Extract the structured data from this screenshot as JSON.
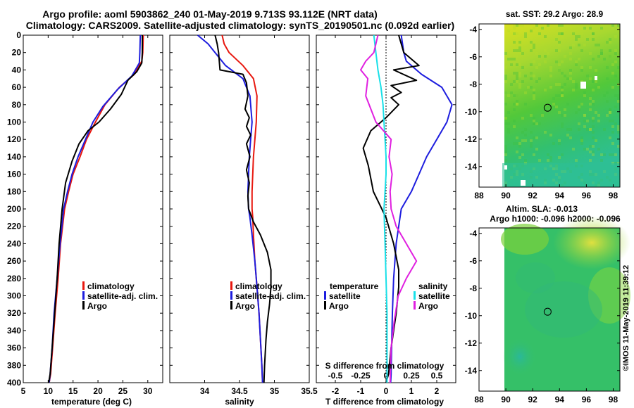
{
  "title": {
    "line1": "Argo profile: aoml 5903862_240 01-May-2019 9.713S 93.112E (NRT data)",
    "line2": "Climatology: CARS2009. Satellite-adjusted climatology: synTS_20190501.nc (0.092d earlier)"
  },
  "copyright": "©IMOS 11-May-2019 11:39:12",
  "colors": {
    "climatology": "#e8180f",
    "satellite": "#1d1dde",
    "argo": "#000000",
    "argo_s": "#e020e0",
    "sat_s": "#18e0e8"
  },
  "chart_data": [
    {
      "type": "line",
      "id": "temperature",
      "xlabel": "temperature (deg C)",
      "ylabel": "",
      "xlim": [
        5,
        33
      ],
      "ylim": [
        400,
        0
      ],
      "xticks": [
        "5",
        "10",
        "15",
        "20",
        "25",
        "30"
      ],
      "xtick_values": [
        5,
        10,
        15,
        20,
        25,
        30
      ],
      "yticks": [
        "0",
        "20",
        "40",
        "60",
        "80",
        "100",
        "120",
        "140",
        "160",
        "180",
        "200",
        "220",
        "240",
        "260",
        "280",
        "300",
        "320",
        "340",
        "360",
        "380",
        "400"
      ],
      "ytick_values": [
        0,
        20,
        40,
        60,
        80,
        100,
        120,
        140,
        160,
        180,
        200,
        220,
        240,
        260,
        280,
        300,
        320,
        340,
        360,
        380,
        400
      ],
      "legend": [
        "climatology",
        "satellite-adj. clim.",
        "Argo"
      ],
      "series": [
        {
          "name": "climatology",
          "color_key": "climatology",
          "x": [
            29.1,
            29.0,
            28.8,
            27.3,
            24.3,
            21.4,
            19.5,
            17.7,
            16.4,
            15.0,
            14.1,
            13.3,
            12.5,
            12.0,
            11.4,
            10.9,
            10.5,
            10.2
          ],
          "y": [
            0,
            20,
            30,
            45,
            60,
            80,
            100,
            120,
            140,
            160,
            180,
            200,
            240,
            280,
            320,
            360,
            390,
            400
          ]
        },
        {
          "name": "satellite-adj. clim.",
          "color_key": "satellite",
          "x": [
            28.5,
            28.4,
            28.3,
            26.8,
            24.0,
            21.0,
            19.0,
            17.5,
            16.0,
            14.8,
            13.9,
            13.1,
            12.4,
            11.8,
            11.2,
            10.8,
            10.4,
            10.2
          ],
          "y": [
            0,
            20,
            32,
            47,
            62,
            82,
            100,
            120,
            140,
            160,
            180,
            200,
            240,
            280,
            320,
            360,
            390,
            400
          ]
        },
        {
          "name": "Argo",
          "color_key": "argo",
          "x": [
            28.9,
            28.9,
            28.8,
            27.8,
            26.0,
            24.7,
            22.5,
            20.2,
            18.0,
            16.2,
            14.8,
            13.5,
            12.8,
            12.2,
            11.8,
            11.3,
            10.8,
            10.4,
            10.1
          ],
          "y": [
            0,
            20,
            32,
            42,
            52,
            68,
            85,
            100,
            110,
            125,
            145,
            170,
            200,
            240,
            280,
            320,
            360,
            390,
            400
          ]
        }
      ]
    },
    {
      "type": "line",
      "id": "salinity",
      "xlabel": "salinity",
      "xlim": [
        33.5,
        35.5
      ],
      "ylim": [
        400,
        0
      ],
      "xticks": [
        "34",
        "34.5",
        "35",
        "35.5"
      ],
      "xtick_values": [
        34,
        34.5,
        35,
        35.5
      ],
      "legend": [
        "climatology",
        "satellite-adj. clim.",
        "Argo"
      ],
      "series": [
        {
          "name": "climatology",
          "color_key": "climatology",
          "x": [
            34.25,
            34.28,
            34.35,
            34.55,
            34.7,
            34.75,
            34.74,
            34.72,
            34.7,
            34.69,
            34.68,
            34.68,
            34.69,
            34.7,
            34.72,
            34.75,
            34.78,
            34.8,
            34.82,
            34.83
          ],
          "y": [
            0,
            10,
            20,
            35,
            50,
            70,
            100,
            120,
            140,
            160,
            180,
            200,
            210,
            230,
            260,
            290,
            320,
            350,
            380,
            400
          ]
        },
        {
          "name": "satellite-adj. clim.",
          "color_key": "satellite",
          "x": [
            33.9,
            34.05,
            34.15,
            34.3,
            34.55,
            34.65,
            34.68,
            34.66,
            34.64,
            34.63,
            34.62,
            34.63,
            34.65,
            34.68,
            34.72,
            34.75,
            34.78,
            34.8,
            34.82,
            34.83
          ],
          "y": [
            0,
            10,
            20,
            35,
            50,
            70,
            100,
            120,
            140,
            160,
            180,
            200,
            210,
            230,
            260,
            290,
            320,
            350,
            380,
            400
          ]
        },
        {
          "name": "Argo",
          "color_key": "argo",
          "x": [
            34.15,
            34.18,
            34.2,
            34.22,
            34.55,
            34.6,
            34.62,
            34.58,
            34.64,
            34.6,
            34.66,
            34.6,
            34.65,
            34.6,
            34.64,
            34.62,
            34.63,
            34.7,
            34.8,
            34.9,
            34.95,
            34.95,
            34.93,
            34.9,
            34.88,
            34.86,
            34.85
          ],
          "y": [
            0,
            10,
            20,
            40,
            45,
            55,
            70,
            85,
            95,
            105,
            115,
            125,
            140,
            155,
            170,
            185,
            200,
            215,
            230,
            250,
            270,
            290,
            310,
            330,
            350,
            380,
            400
          ]
        }
      ]
    },
    {
      "type": "line",
      "id": "difference",
      "xlabel": "T difference from climatology",
      "xtop_label": "S difference from climatology",
      "xlim": [
        -2.75,
        2.75
      ],
      "ylim": [
        400,
        0
      ],
      "xticks": [
        "-2",
        "-1",
        "0",
        "1",
        "2"
      ],
      "xtick_values": [
        -2,
        -1,
        0,
        1,
        2
      ],
      "s_xticks": [
        "-0.5",
        "-0.25",
        "0",
        "0.25",
        "0.5"
      ],
      "s_xtick_values": [
        -0.5,
        -0.25,
        0,
        0.25,
        0.5
      ],
      "legend_left_header": "temperature",
      "legend_right_header": "salinity",
      "legend_left": [
        "satellite",
        "Argo"
      ],
      "legend_right": [
        "satellite",
        "Argo"
      ],
      "series": [
        {
          "name": "satellite (T)",
          "color_key": "satellite",
          "x": [
            0.6,
            0.7,
            0.8,
            1.4,
            2.2,
            2.6,
            2.4,
            2.0,
            1.6,
            1.3,
            1.0,
            0.6,
            0.4,
            0.3,
            0.25,
            0.22,
            0.2,
            0.18
          ],
          "y": [
            0,
            20,
            30,
            45,
            60,
            80,
            100,
            120,
            140,
            160,
            180,
            200,
            240,
            280,
            320,
            360,
            390,
            400
          ]
        },
        {
          "name": "Argo (T)",
          "color_key": "argo",
          "x": [
            0.5,
            0.7,
            1.3,
            0.3,
            1.2,
            0.2,
            0.6,
            0.2,
            0.5,
            0.0,
            -0.6,
            -0.9,
            -0.7,
            -0.5,
            0.0,
            0.3,
            0.5,
            0.5,
            0.4,
            0.2,
            0.1,
            0.0
          ],
          "y": [
            0,
            20,
            35,
            40,
            52,
            58,
            66,
            72,
            80,
            95,
            110,
            130,
            150,
            180,
            210,
            240,
            270,
            290,
            320,
            360,
            390,
            400
          ]
        },
        {
          "name": "satellite (S)",
          "color_key": "sat_s",
          "x": [
            -0.12,
            -0.1,
            -0.08,
            -0.05,
            -0.03,
            -0.02,
            -0.01,
            0.0,
            0.0,
            -0.01,
            -0.02,
            -0.01,
            0.0,
            0.01,
            0.01,
            0.01
          ],
          "y": [
            0,
            20,
            40,
            60,
            80,
            100,
            120,
            140,
            160,
            180,
            200,
            240,
            280,
            320,
            360,
            400
          ]
        },
        {
          "name": "Argo (S)",
          "color_key": "argo_s",
          "x": [
            -0.08,
            -0.12,
            -0.2,
            -0.25,
            -0.18,
            -0.2,
            -0.1,
            0.05,
            0.03,
            0.06,
            0.04,
            0.05,
            0.1,
            0.2,
            0.3,
            0.2,
            0.12,
            0.08,
            0.05,
            0.04
          ],
          "y": [
            0,
            20,
            30,
            40,
            50,
            70,
            100,
            120,
            140,
            160,
            180,
            200,
            220,
            240,
            260,
            280,
            300,
            330,
            360,
            400
          ]
        }
      ]
    },
    {
      "type": "heatmap",
      "id": "sst_map",
      "title": "sat. SST: 29.2 Argo: 28.9",
      "xlim": [
        88,
        98.5
      ],
      "ylim": [
        -15.5,
        -3.6
      ],
      "xticks": [
        "88",
        "90",
        "92",
        "94",
        "96",
        "98"
      ],
      "xtick_values": [
        88,
        90,
        92,
        94,
        96,
        98
      ],
      "yticks": [
        "-4",
        "-6",
        "-8",
        "-10",
        "-12",
        "-14"
      ],
      "ytick_values": [
        -4,
        -6,
        -8,
        -10,
        -12,
        -14
      ],
      "argo_position": [
        93.112,
        -9.713
      ]
    },
    {
      "type": "heatmap",
      "id": "sla_map",
      "title": "Altim. SLA: -0.013",
      "subtitle": "Argo h1000: -0.096 h2000: -0.096",
      "xlim": [
        88,
        98.5
      ],
      "ylim": [
        -15.5,
        -3.6
      ],
      "xticks": [
        "88",
        "90",
        "92",
        "94",
        "96",
        "98"
      ],
      "xtick_values": [
        88,
        90,
        92,
        94,
        96,
        98
      ],
      "yticks": [
        "-4",
        "-6",
        "-8",
        "-10",
        "-12",
        "-14"
      ],
      "ytick_values": [
        -4,
        -6,
        -8,
        -10,
        -12,
        -14
      ],
      "argo_position": [
        93.112,
        -9.713
      ]
    }
  ]
}
